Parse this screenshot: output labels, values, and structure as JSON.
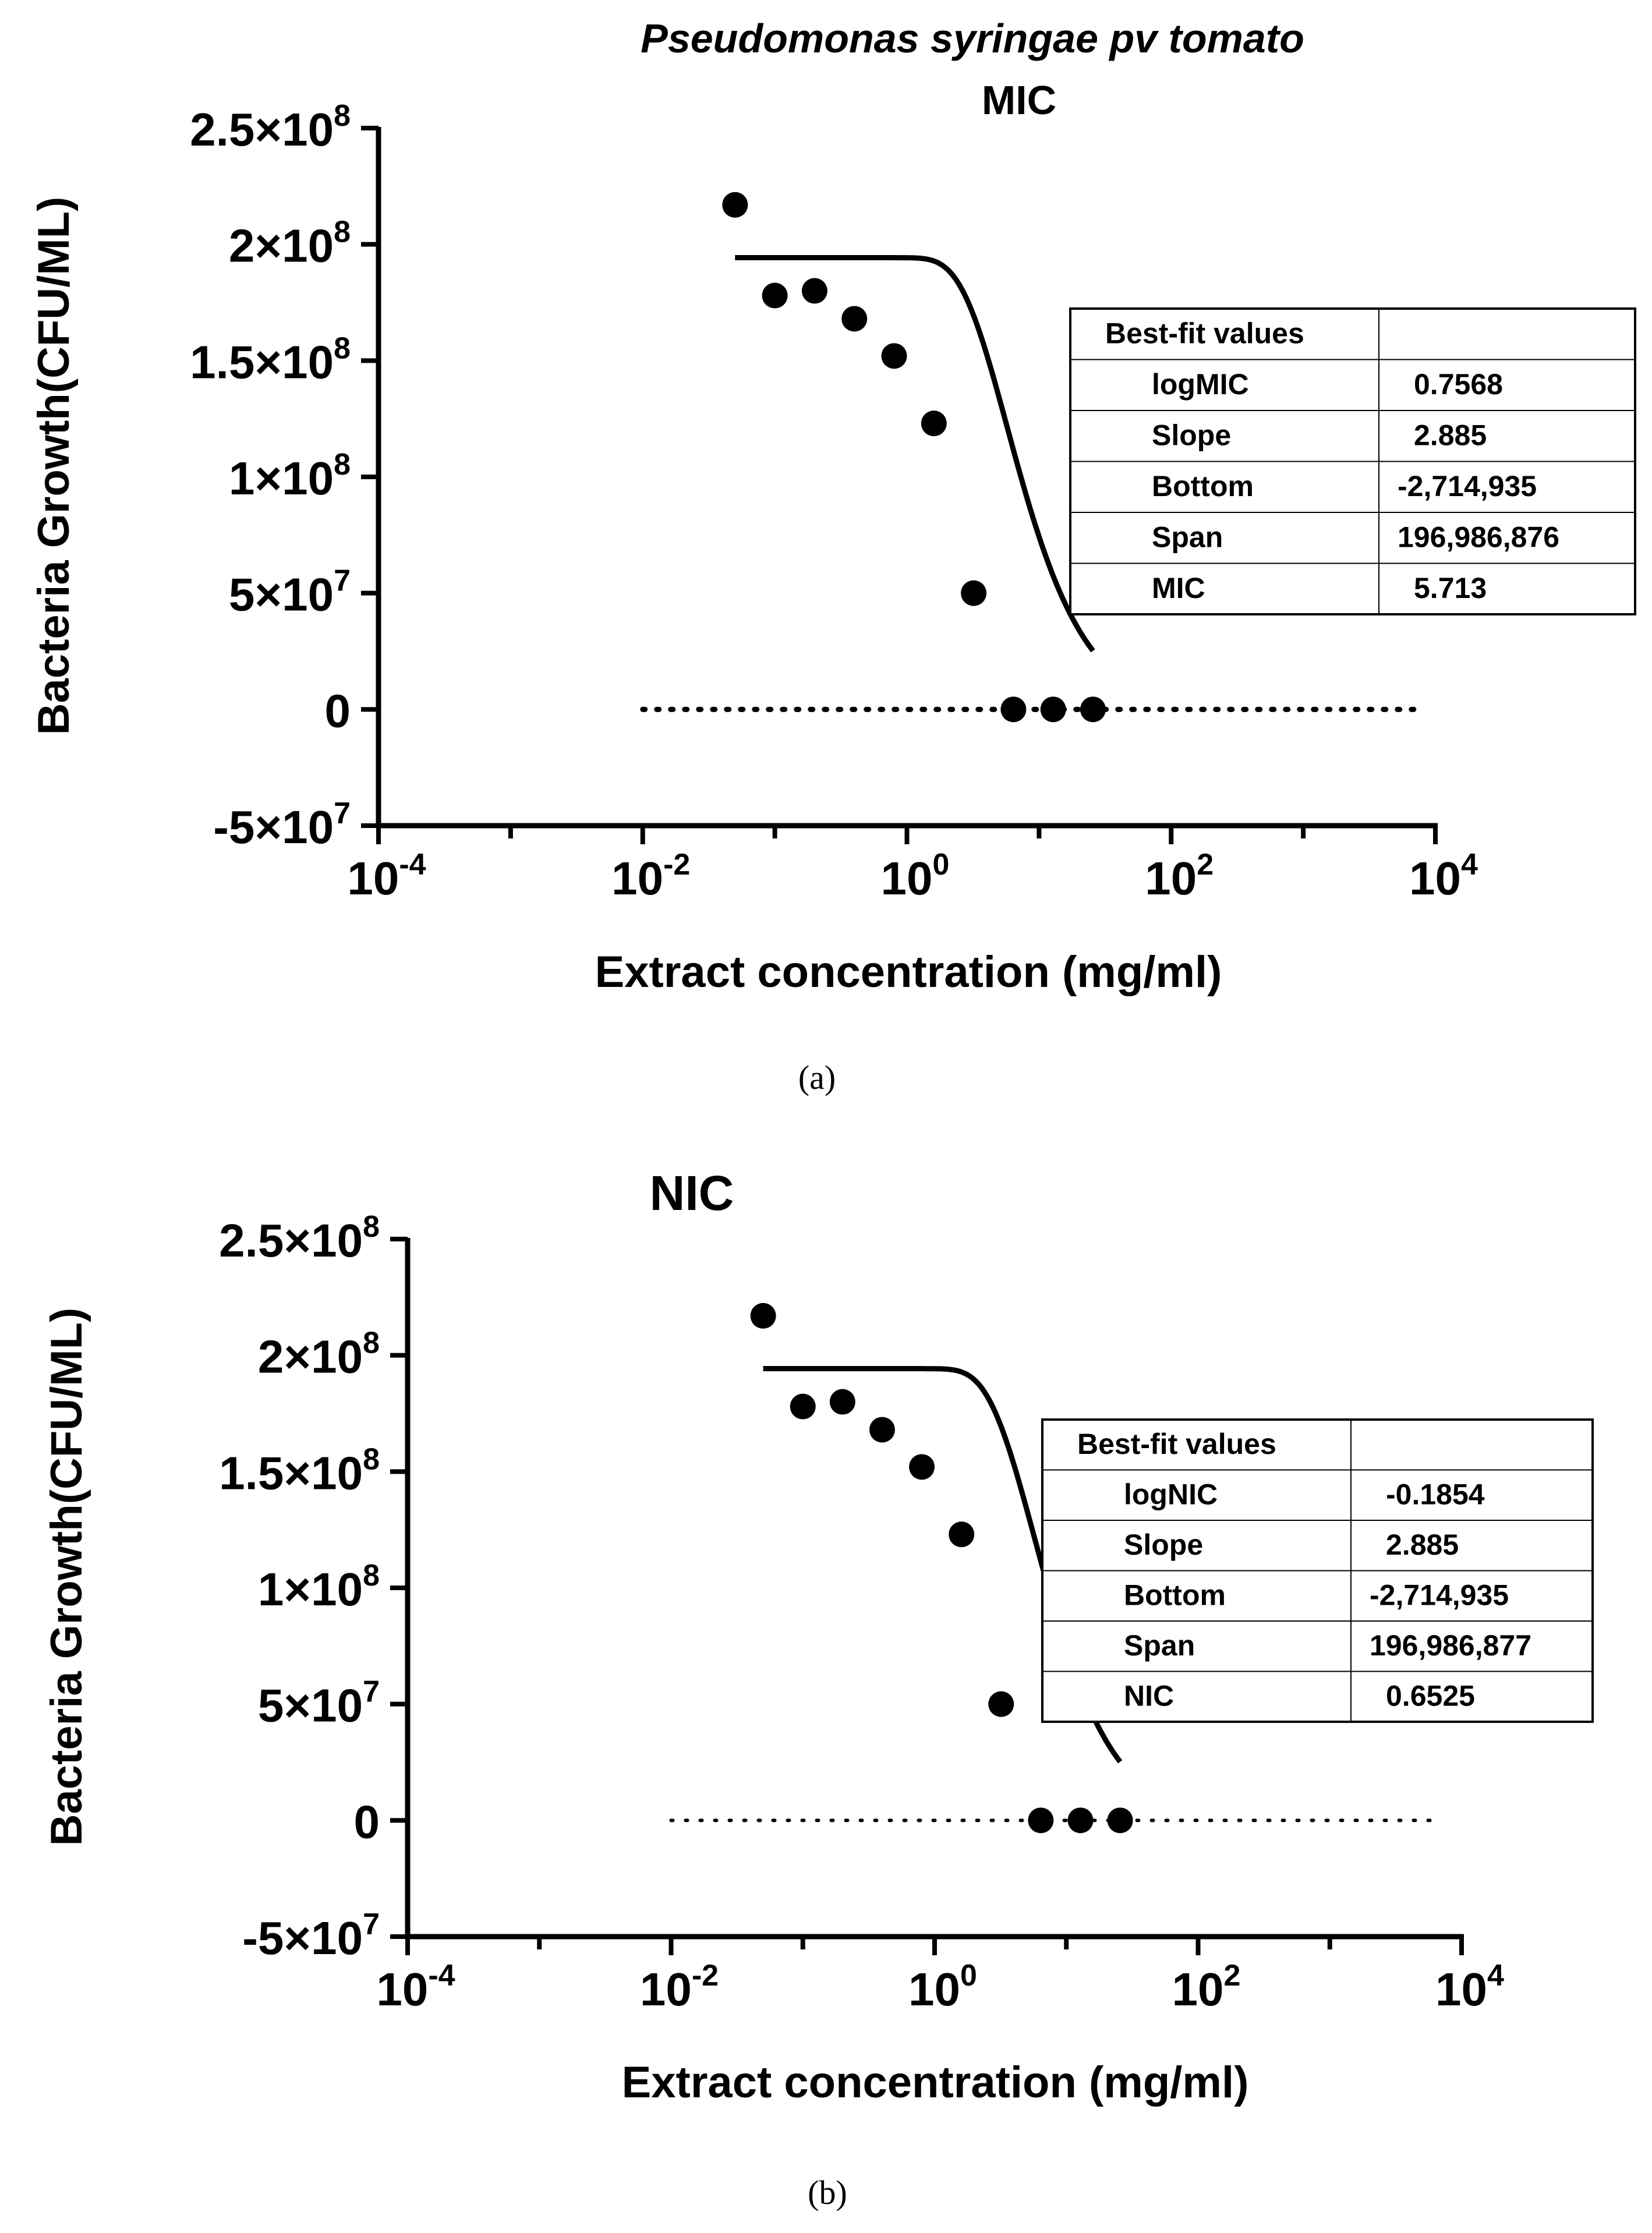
{
  "figure": {
    "caption_a": "(a)",
    "caption_b": "(b)"
  },
  "chart_data": [
    {
      "id": "a",
      "type": "scatter",
      "title": "Pseudomonas syringae pv tomato",
      "subtitle": "MIC",
      "xlabel": "Extract concentration (mg/ml)",
      "ylabel": "Bacteria Growth(CFU/ML)",
      "xscale": "log10",
      "xlim": [
        0.0001,
        10000
      ],
      "ylim": [
        -50000000,
        250000000
      ],
      "x_ticks": [
        {
          "value": 0.0001,
          "base": "10",
          "exp": "-4"
        },
        {
          "value": 0.01,
          "base": "10",
          "exp": "-2"
        },
        {
          "value": 1,
          "base": "10",
          "exp": "0"
        },
        {
          "value": 100,
          "base": "10",
          "exp": "2"
        },
        {
          "value": 10000,
          "base": "10",
          "exp": "4"
        }
      ],
      "y_ticks": [
        {
          "value": 250000000,
          "mant": "2.5×10",
          "exp": "8"
        },
        {
          "value": 200000000,
          "mant": "2×10",
          "exp": "8"
        },
        {
          "value": 150000000,
          "mant": "1.5×10",
          "exp": "8"
        },
        {
          "value": 100000000,
          "mant": "1×10",
          "exp": "8"
        },
        {
          "value": 50000000,
          "mant": "5×10",
          "exp": "7"
        },
        {
          "value": 0,
          "mant": "0",
          "exp": ""
        },
        {
          "value": -50000000,
          "mant": "-5×10",
          "exp": "7"
        }
      ],
      "points": {
        "x": [
          0.05,
          0.1,
          0.2,
          0.4,
          0.8,
          1.6,
          3.2,
          6.4,
          12.8,
          25.6
        ],
        "y": [
          217000000,
          178000000,
          180000000,
          168000000,
          152000000,
          123000000,
          50000000,
          0,
          0,
          0
        ]
      },
      "fit": {
        "model": "Gompertz",
        "logX0": 0.7568,
        "slope": 2.885,
        "bottom": -2714935,
        "span": 196986876,
        "x_range": [
          0.05,
          25.6
        ]
      },
      "reference_line": {
        "y": 0,
        "style": "dotted",
        "x_range": [
          0.01,
          7000
        ]
      },
      "table": {
        "header": "Best-fit values",
        "rows": [
          {
            "label": "logMIC",
            "value": "0.7568"
          },
          {
            "label": "Slope",
            "value": "2.885"
          },
          {
            "label": "Bottom",
            "value": "-2,714,935"
          },
          {
            "label": "Span",
            "value": "196,986,876"
          },
          {
            "label": "MIC",
            "value": "5.713"
          }
        ]
      },
      "legend": "none",
      "grid": false
    },
    {
      "id": "b",
      "type": "scatter",
      "title": "NIC",
      "xlabel": "Extract concentration (mg/ml)",
      "ylabel": "Bacteria Growth(CFU/ML)",
      "xscale": "log10",
      "xlim": [
        0.0001,
        10000
      ],
      "ylim": [
        -50000000,
        250000000
      ],
      "x_ticks": [
        {
          "value": 0.0001,
          "base": "10",
          "exp": "-4"
        },
        {
          "value": 0.01,
          "base": "10",
          "exp": "-2"
        },
        {
          "value": 1,
          "base": "10",
          "exp": "0"
        },
        {
          "value": 100,
          "base": "10",
          "exp": "2"
        },
        {
          "value": 10000,
          "base": "10",
          "exp": "4"
        }
      ],
      "y_ticks": [
        {
          "value": 250000000,
          "mant": "2.5×10",
          "exp": "8"
        },
        {
          "value": 200000000,
          "mant": "2×10",
          "exp": "8"
        },
        {
          "value": 150000000,
          "mant": "1.5×10",
          "exp": "8"
        },
        {
          "value": 100000000,
          "mant": "1×10",
          "exp": "8"
        },
        {
          "value": 50000000,
          "mant": "5×10",
          "exp": "7"
        },
        {
          "value": 0,
          "mant": "0",
          "exp": ""
        },
        {
          "value": -50000000,
          "mant": "-5×10",
          "exp": "7"
        }
      ],
      "points": {
        "x": [
          0.05,
          0.1,
          0.2,
          0.4,
          0.8,
          1.6,
          3.2,
          6.4,
          12.8,
          25.6
        ],
        "y": [
          217000000,
          178000000,
          180000000,
          168000000,
          152000000,
          123000000,
          50000000,
          0,
          0,
          0
        ]
      },
      "fit": {
        "model": "Gompertz",
        "logX0": 0.7568,
        "slope": 2.885,
        "bottom": -2714935,
        "span": 196986877,
        "x_range": [
          0.05,
          25.6
        ]
      },
      "reference_line": {
        "y": 0,
        "style": "dotted",
        "x_range": [
          0.01,
          7000
        ]
      },
      "table": {
        "header": "Best-fit values",
        "rows": [
          {
            "label": "logNIC",
            "value": "-0.1854"
          },
          {
            "label": "Slope",
            "value": "2.885"
          },
          {
            "label": "Bottom",
            "value": "-2,714,935"
          },
          {
            "label": "Span",
            "value": "196,986,877"
          },
          {
            "label": "NIC",
            "value": "0.6525"
          }
        ]
      },
      "legend": "none",
      "grid": false
    }
  ]
}
